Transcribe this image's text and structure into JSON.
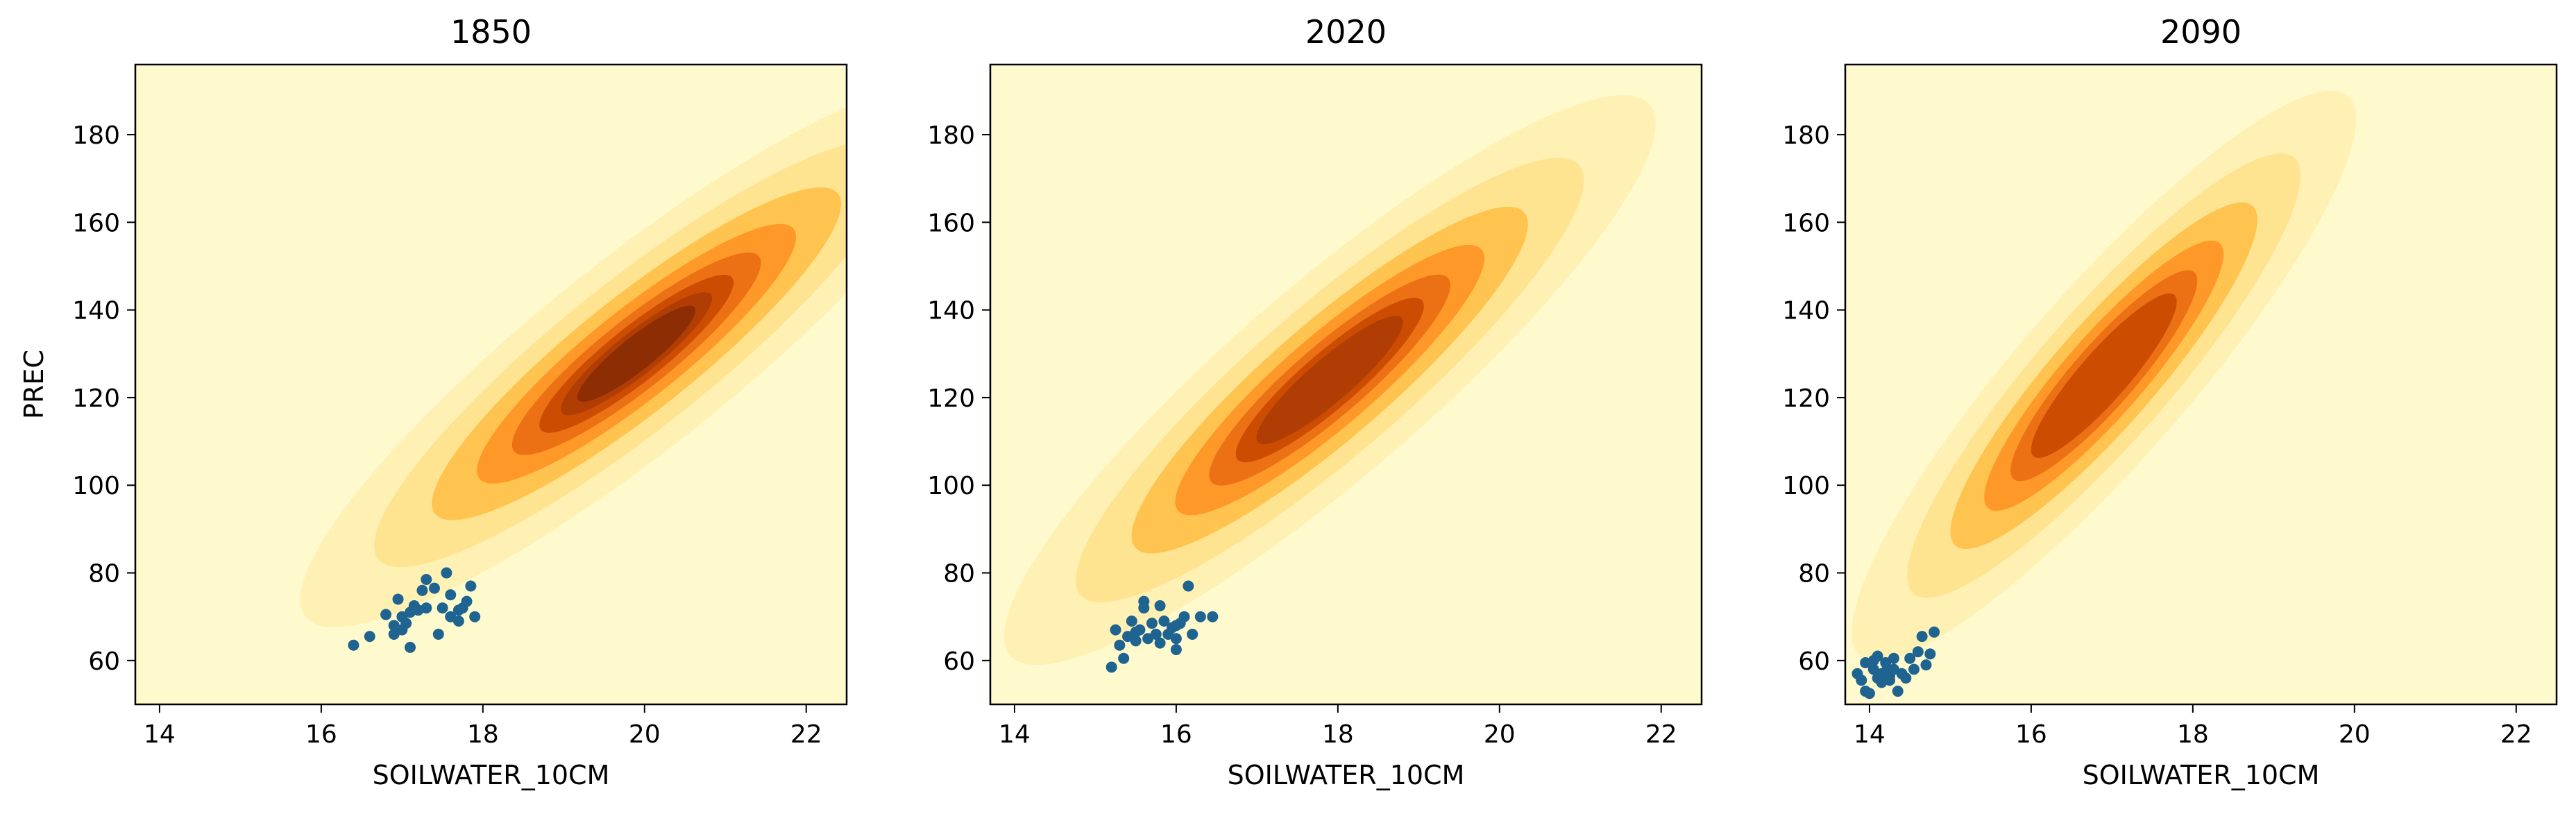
{
  "chart_data": [
    {
      "type": "scatter",
      "subtype": "kde-contour-with-scatter",
      "title": "1850",
      "xlabel": "SOILWATER_10CM",
      "ylabel": "PREC",
      "xlim": [
        13.7,
        22.5
      ],
      "ylim": [
        50,
        196
      ],
      "xticks": [
        14,
        16,
        18,
        20,
        22
      ],
      "yticks": [
        60,
        80,
        100,
        120,
        140,
        160,
        180
      ],
      "grid": false,
      "background_color": "#fffacd",
      "kde": {
        "center": [
          19.9,
          130
        ],
        "sd": [
          1.6,
          24
        ],
        "corr": 0.9,
        "levels": 8,
        "colormap": "YlOrBr"
      },
      "points": [
        [
          16.4,
          63.5
        ],
        [
          16.6,
          65.5
        ],
        [
          16.8,
          70.5
        ],
        [
          16.9,
          68.0
        ],
        [
          16.9,
          66.0
        ],
        [
          16.95,
          74.0
        ],
        [
          17.0,
          70.0
        ],
        [
          17.05,
          68.5
        ],
        [
          17.1,
          63.0
        ],
        [
          17.1,
          71.0
        ],
        [
          17.2,
          71.5
        ],
        [
          17.25,
          76.0
        ],
        [
          17.3,
          78.5
        ],
        [
          17.3,
          72.0
        ],
        [
          17.4,
          76.5
        ],
        [
          17.45,
          66.0
        ],
        [
          17.5,
          72.0
        ],
        [
          17.55,
          80.0
        ],
        [
          17.6,
          75.0
        ],
        [
          17.7,
          71.5
        ],
        [
          17.7,
          69.0
        ],
        [
          17.8,
          73.5
        ],
        [
          17.85,
          77.0
        ],
        [
          17.9,
          70.0
        ],
        [
          17.6,
          70.0
        ],
        [
          17.0,
          67.0
        ],
        [
          17.15,
          72.5
        ],
        [
          17.75,
          72.0
        ]
      ],
      "point_color": "#1f6391"
    },
    {
      "type": "scatter",
      "subtype": "kde-contour-with-scatter",
      "title": "2020",
      "xlabel": "SOILWATER_10CM",
      "ylabel": "",
      "xlim": [
        13.7,
        22.5
      ],
      "ylim": [
        50,
        196
      ],
      "xticks": [
        14,
        16,
        18,
        20,
        22
      ],
      "yticks": [
        60,
        80,
        100,
        120,
        140,
        160,
        180
      ],
      "grid": false,
      "background_color": "#fffacd",
      "kde": {
        "center": [
          17.9,
          124
        ],
        "sd": [
          1.55,
          25
        ],
        "corr": 0.9,
        "levels": 7,
        "colormap": "YlOrBr"
      },
      "points": [
        [
          15.2,
          58.5
        ],
        [
          15.25,
          67.0
        ],
        [
          15.3,
          63.5
        ],
        [
          15.35,
          60.5
        ],
        [
          15.4,
          65.5
        ],
        [
          15.45,
          69.0
        ],
        [
          15.5,
          64.5
        ],
        [
          15.55,
          67.0
        ],
        [
          15.6,
          72.0
        ],
        [
          15.6,
          73.5
        ],
        [
          15.65,
          65.0
        ],
        [
          15.7,
          68.5
        ],
        [
          15.75,
          66.0
        ],
        [
          15.8,
          72.5
        ],
        [
          15.85,
          69.0
        ],
        [
          15.9,
          66.0
        ],
        [
          15.95,
          67.5
        ],
        [
          16.0,
          62.5
        ],
        [
          16.0,
          65.0
        ],
        [
          16.05,
          68.5
        ],
        [
          16.1,
          70.0
        ],
        [
          16.15,
          77.0
        ],
        [
          16.2,
          66.0
        ],
        [
          16.3,
          70.0
        ],
        [
          16.45,
          70.0
        ],
        [
          15.5,
          66.5
        ],
        [
          15.8,
          64.0
        ],
        [
          16.0,
          68.0
        ]
      ],
      "point_color": "#1f6391"
    },
    {
      "type": "scatter",
      "subtype": "kde-contour-with-scatter",
      "title": "2090",
      "xlabel": "SOILWATER_10CM",
      "ylabel": "",
      "xlim": [
        13.7,
        22.5
      ],
      "ylim": [
        50,
        196
      ],
      "xticks": [
        14,
        16,
        18,
        20,
        22
      ],
      "yticks": [
        60,
        80,
        100,
        120,
        140,
        160,
        180
      ],
      "grid": false,
      "background_color": "#fffacd",
      "kde": {
        "center": [
          16.9,
          125
        ],
        "sd": [
          1.2,
          25
        ],
        "corr": 0.9,
        "levels": 6,
        "colormap": "YlOrBr"
      },
      "points": [
        [
          13.85,
          57.0
        ],
        [
          13.9,
          55.5
        ],
        [
          13.95,
          53.0
        ],
        [
          13.95,
          59.5
        ],
        [
          14.0,
          52.5
        ],
        [
          14.05,
          58.0
        ],
        [
          14.1,
          61.0
        ],
        [
          14.1,
          56.0
        ],
        [
          14.15,
          55.0
        ],
        [
          14.2,
          59.5
        ],
        [
          14.2,
          57.5
        ],
        [
          14.25,
          55.5
        ],
        [
          14.3,
          60.5
        ],
        [
          14.3,
          58.0
        ],
        [
          14.35,
          53.0
        ],
        [
          14.4,
          57.0
        ],
        [
          14.45,
          56.0
        ],
        [
          14.5,
          60.5
        ],
        [
          14.55,
          58.0
        ],
        [
          14.6,
          62.0
        ],
        [
          14.65,
          65.5
        ],
        [
          14.7,
          59.0
        ],
        [
          14.75,
          61.5
        ],
        [
          14.8,
          66.5
        ],
        [
          14.05,
          60.0
        ],
        [
          14.15,
          57.0
        ],
        [
          14.25,
          56.5
        ]
      ],
      "point_color": "#1f6391"
    }
  ]
}
